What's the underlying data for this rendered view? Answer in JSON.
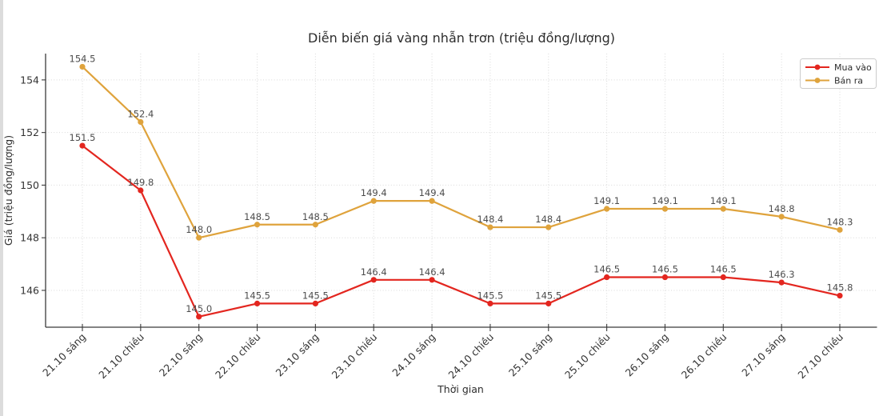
{
  "chart_data": {
    "type": "line",
    "title": "Diễn biến giá vàng nhẫn trơn (triệu đồng/lượng)",
    "xlabel": "Thời gian",
    "ylabel": "Giá (triệu đồng/lượng)",
    "categories": [
      "21.10 sáng",
      "21.10 chiều",
      "22.10 sáng",
      "22.10 chiều",
      "23.10 sáng",
      "23.10 chiều",
      "24.10 sáng",
      "24.10 chiều",
      "25.10 sáng",
      "25.10 chiều",
      "26.10 sáng",
      "26.10 chiều",
      "27.10 sáng",
      "27.10 chiều"
    ],
    "series": [
      {
        "name": "Mua vào",
        "color": "#e3261f",
        "values": [
          151.5,
          149.8,
          145.0,
          145.5,
          145.5,
          146.4,
          146.4,
          145.5,
          145.5,
          146.5,
          146.5,
          146.5,
          146.3,
          145.8
        ]
      },
      {
        "name": "Bán ra",
        "color": "#dfa33c",
        "values": [
          154.5,
          152.4,
          148.0,
          148.5,
          148.5,
          149.4,
          149.4,
          148.4,
          148.4,
          149.1,
          149.1,
          149.1,
          148.8,
          148.3
        ]
      }
    ],
    "y_ticks": [
      146,
      148,
      150,
      152,
      154
    ],
    "ylim": [
      144.6,
      155.0
    ],
    "grid": "dotted-both-axes",
    "legend_position": "top-right",
    "value_labels": "shown-above-each-point-one-decimal",
    "x_tick_rotation_deg": 45
  },
  "colors": {
    "buy_line": "#e3261f",
    "sell_line": "#dfa33c",
    "gridline": "#d9d9d9",
    "axis_spine": "#3b3b3b",
    "tick_label_text": "#333333",
    "title_text": "#2d2d2d",
    "value_label_text": "#4d4d4d",
    "legend_border": "#cccccc",
    "page_edge_strip": "#dcdcdc",
    "background": "#ffffff"
  }
}
